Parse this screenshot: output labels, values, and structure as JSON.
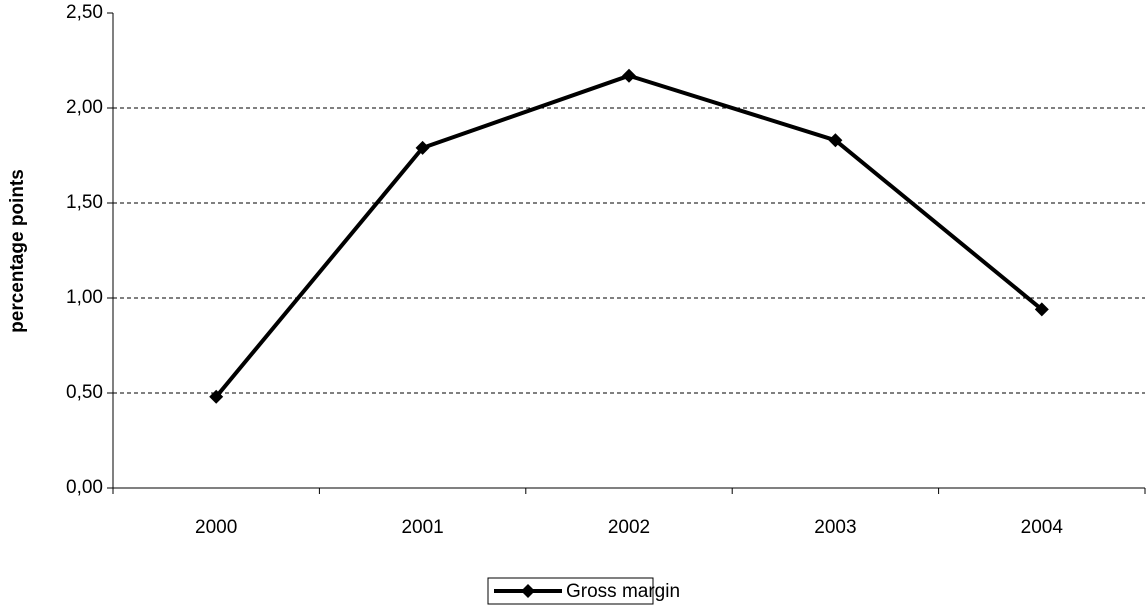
{
  "chart_data": {
    "type": "line",
    "y_label": "percentage points",
    "categories": [
      "2000",
      "2001",
      "2002",
      "2003",
      "2004"
    ],
    "series": [
      {
        "name": "Gross margin",
        "color": "#000000",
        "values": [
          0.48,
          1.79,
          2.17,
          1.83,
          0.94
        ]
      }
    ],
    "ylim": [
      0,
      2.5
    ],
    "yticks": [
      {
        "value": 0,
        "label": "0,00"
      },
      {
        "value": 0.5,
        "label": "0,50"
      },
      {
        "value": 1,
        "label": "1,00"
      },
      {
        "value": 1.5,
        "label": "1,50"
      },
      {
        "value": 2,
        "label": "2,00"
      },
      {
        "value": 2.5,
        "label": "2,50"
      }
    ],
    "grid": true,
    "legend": "bottom"
  }
}
